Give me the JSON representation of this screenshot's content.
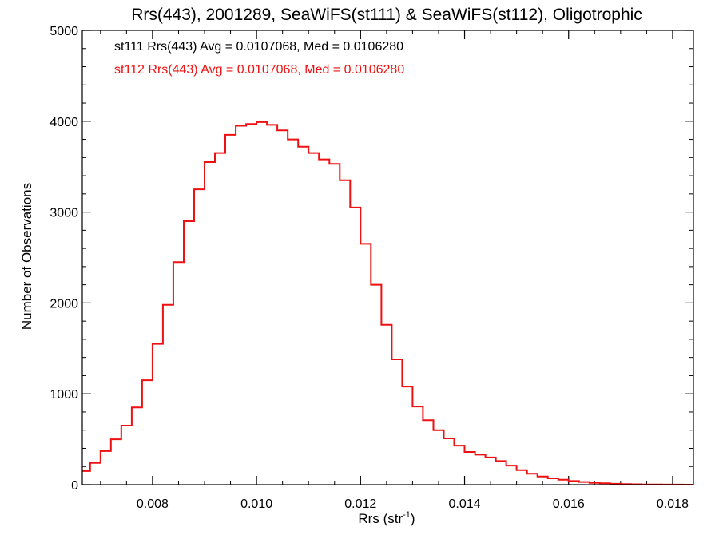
{
  "chart_data": {
    "type": "histogram",
    "title": "Rrs(443), 2001289, SeaWiFS(st111) & SeaWiFS(st112), Oligotrophic",
    "xlabel": "Rrs (str",
    "xlabel_sup": "-1",
    "xlabel_close": ")",
    "ylabel": "Number of Observations",
    "xlim": [
      0.00665,
      0.0184
    ],
    "ylim": [
      0,
      5000
    ],
    "x_ticks": [
      0.008,
      0.01,
      0.012,
      0.014,
      0.016,
      0.018
    ],
    "x_tick_labels": [
      "0.008",
      "0.010",
      "0.012",
      "0.014",
      "0.016",
      "0.018"
    ],
    "y_ticks": [
      0,
      1000,
      2000,
      3000,
      4000,
      5000
    ],
    "y_tick_labels": [
      "0",
      "1000",
      "2000",
      "3000",
      "4000",
      "5000"
    ],
    "annotations": [
      {
        "text": "st111 Rrs(443) Avg = 0.0107068, Med = 0.0106280",
        "color": "#000000"
      },
      {
        "text": "st112 Rrs(443) Avg = 0.0107068, Med = 0.0106280",
        "color": "#ee1111"
      }
    ],
    "series": [
      {
        "color": "#ee1111",
        "points": [
          [
            0.0067,
            150
          ],
          [
            0.0069,
            240
          ],
          [
            0.0071,
            370
          ],
          [
            0.0073,
            500
          ],
          [
            0.0075,
            650
          ],
          [
            0.0077,
            850
          ],
          [
            0.0079,
            1150
          ],
          [
            0.0081,
            1550
          ],
          [
            0.0083,
            1980
          ],
          [
            0.0085,
            2450
          ],
          [
            0.0087,
            2900
          ],
          [
            0.0089,
            3250
          ],
          [
            0.0091,
            3550
          ],
          [
            0.0093,
            3650
          ],
          [
            0.0095,
            3850
          ],
          [
            0.0097,
            3950
          ],
          [
            0.0099,
            3970
          ],
          [
            0.0101,
            3990
          ],
          [
            0.0103,
            3960
          ],
          [
            0.0105,
            3900
          ],
          [
            0.0107,
            3800
          ],
          [
            0.0109,
            3720
          ],
          [
            0.0111,
            3650
          ],
          [
            0.0113,
            3580
          ],
          [
            0.0115,
            3530
          ],
          [
            0.0117,
            3350
          ],
          [
            0.0119,
            3050
          ],
          [
            0.0121,
            2650
          ],
          [
            0.0123,
            2200
          ],
          [
            0.0125,
            1760
          ],
          [
            0.0127,
            1380
          ],
          [
            0.0129,
            1080
          ],
          [
            0.0131,
            860
          ],
          [
            0.0133,
            710
          ],
          [
            0.0135,
            600
          ],
          [
            0.0137,
            510
          ],
          [
            0.0139,
            430
          ],
          [
            0.0141,
            360
          ],
          [
            0.0143,
            330
          ],
          [
            0.0145,
            300
          ],
          [
            0.0147,
            260
          ],
          [
            0.0149,
            210
          ],
          [
            0.0151,
            160
          ],
          [
            0.0153,
            120
          ],
          [
            0.0155,
            90
          ],
          [
            0.0157,
            70
          ],
          [
            0.0159,
            55
          ],
          [
            0.0161,
            40
          ],
          [
            0.0163,
            30
          ],
          [
            0.0165,
            20
          ],
          [
            0.0167,
            15
          ],
          [
            0.0169,
            10
          ],
          [
            0.0171,
            6
          ],
          [
            0.0173,
            4
          ],
          [
            0.0175,
            3
          ],
          [
            0.0177,
            2
          ],
          [
            0.0179,
            1
          ],
          [
            0.0181,
            1
          ],
          [
            0.0183,
            0
          ]
        ]
      }
    ],
    "grid": false,
    "legend": "top-left"
  }
}
